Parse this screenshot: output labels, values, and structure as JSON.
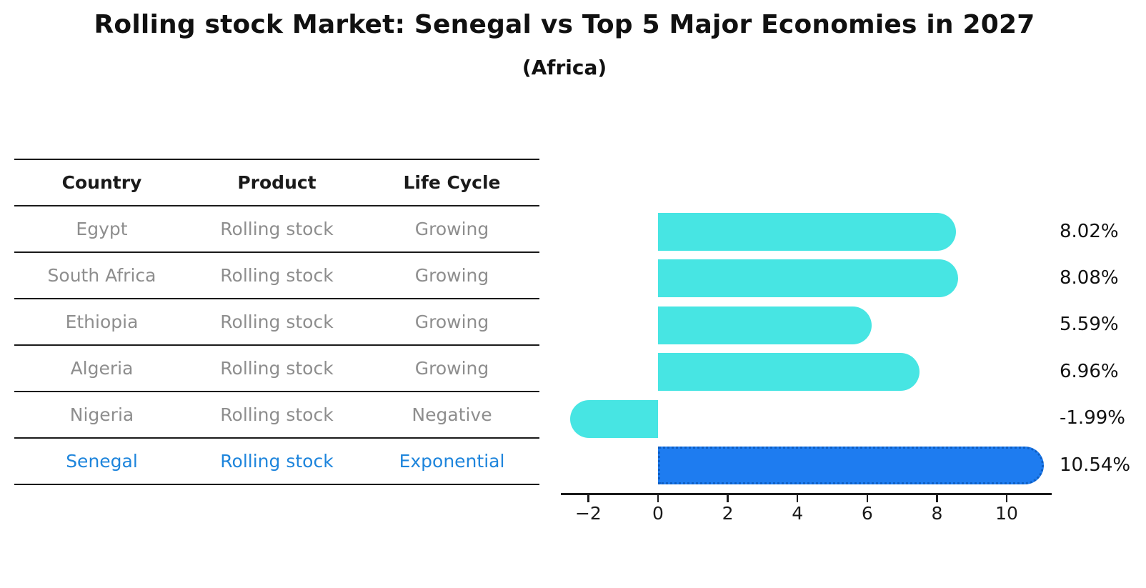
{
  "title": "Rolling stock Market: Senegal vs Top 5 Major Economies in 2027",
  "subtitle": "(Africa)",
  "table": {
    "headers": [
      "Country",
      "Product",
      "Life Cycle"
    ],
    "rows": [
      {
        "country": "Egypt",
        "product": "Rolling stock",
        "life_cycle": "Growing",
        "highlight": false
      },
      {
        "country": "South Africa",
        "product": "Rolling stock",
        "life_cycle": "Growing",
        "highlight": false
      },
      {
        "country": "Ethiopia",
        "product": "Rolling stock",
        "life_cycle": "Growing",
        "highlight": false
      },
      {
        "country": "Algeria",
        "product": "Rolling stock",
        "life_cycle": "Growing",
        "highlight": false
      },
      {
        "country": "Nigeria",
        "product": "Rolling stock",
        "life_cycle": "Negative",
        "highlight": false
      },
      {
        "country": "Senegal",
        "product": "Rolling stock",
        "life_cycle": "Exponential",
        "highlight": true
      }
    ]
  },
  "chart_data": {
    "type": "bar",
    "orientation": "horizontal",
    "title": "Rolling stock Market: Senegal vs Top 5 Major Economies in 2027 (Africa)",
    "categories": [
      "Egypt",
      "South Africa",
      "Ethiopia",
      "Algeria",
      "Nigeria",
      "Senegal"
    ],
    "values": [
      8.02,
      8.08,
      5.59,
      6.96,
      -1.99,
      10.54
    ],
    "value_labels": [
      "8.02%",
      "8.08%",
      "5.59%",
      "6.96%",
      "-1.99%",
      "10.54%"
    ],
    "highlight_index": 5,
    "x_tick_values": [
      -2,
      0,
      2,
      4,
      6,
      8,
      10
    ],
    "x_tick_labels": [
      "−2",
      "0",
      "2",
      "4",
      "6",
      "8",
      "10"
    ],
    "xlim": [
      -2.8,
      11.3
    ],
    "grid": false,
    "legend": false
  },
  "colors": {
    "bar_color": "#47E5E3",
    "highlight_bar_color": "#1E7CF0",
    "highlight_bar_border": "#0E5FC4",
    "highlight_text_color": "#1e85dc",
    "row_text_color": "#8e8e8e",
    "axis_color": "#1a1a1a"
  }
}
